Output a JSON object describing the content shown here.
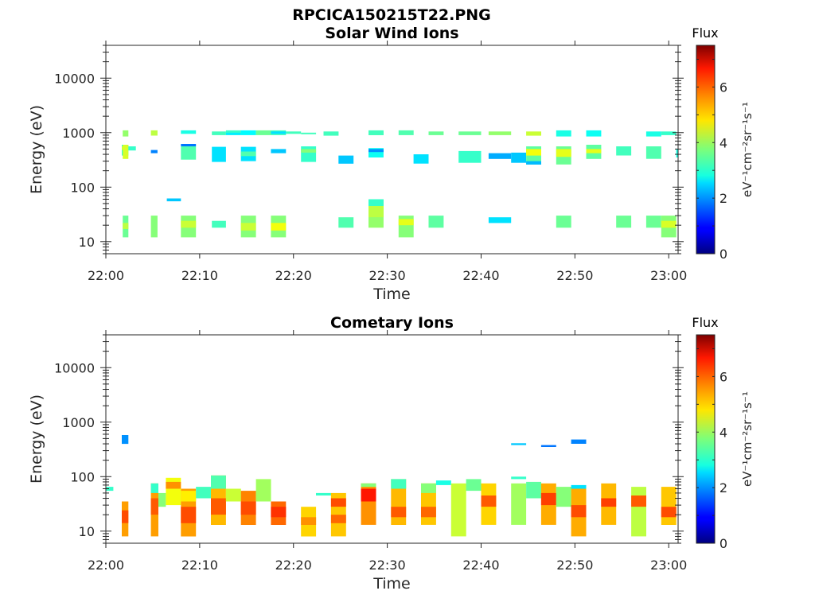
{
  "main_title": "RPCICA150215T22.PNG",
  "colorbar": {
    "label": "Flux",
    "ticks": [
      "0",
      "2",
      "4",
      "6"
    ],
    "range": [
      0,
      7.5
    ],
    "units": "eV⁻¹cm⁻²sr⁻¹s⁻¹",
    "colormap": "jet"
  },
  "chart_data": [
    {
      "type": "heatmap",
      "title": "Solar Wind Ions",
      "xlabel": "Time",
      "ylabel": "Energy (eV)",
      "xlim": [
        "22:00",
        "23:01"
      ],
      "xticks": [
        "22:00",
        "22:10",
        "22:20",
        "22:30",
        "22:40",
        "22:50",
        "23:00"
      ],
      "ylim": [
        6,
        40000
      ],
      "yscale": "log",
      "yticks": [
        "10",
        "100",
        "1000",
        "10000"
      ],
      "cells": [
        [
          1.7,
          2.4,
          380,
          600,
          3.2
        ],
        [
          1.7,
          2.4,
          480,
          560,
          4.3
        ],
        [
          1.8,
          2.4,
          850,
          1100,
          3.9
        ],
        [
          1.8,
          2.4,
          330,
          600,
          4.4
        ],
        [
          2.4,
          3.2,
          470,
          560,
          3.2
        ],
        [
          1.8,
          2.4,
          12,
          30,
          3.6
        ],
        [
          1.8,
          2.4,
          17,
          22,
          4.2
        ],
        [
          4.8,
          5.5,
          880,
          1100,
          4.2
        ],
        [
          4.8,
          5.5,
          420,
          480,
          1.9
        ],
        [
          4.8,
          5.5,
          12,
          30,
          3.8
        ],
        [
          6.5,
          8.0,
          55,
          62,
          2.4
        ],
        [
          8.0,
          9.6,
          950,
          1100,
          3.0
        ],
        [
          8.0,
          9.6,
          560,
          620,
          1.8
        ],
        [
          8.0,
          9.6,
          320,
          560,
          3.4
        ],
        [
          8.0,
          9.6,
          12,
          30,
          3.8
        ],
        [
          8.0,
          9.6,
          18,
          24,
          4.3
        ],
        [
          11.3,
          12.8,
          900,
          1050,
          3.3
        ],
        [
          11.3,
          12.8,
          290,
          550,
          2.6
        ],
        [
          11.3,
          12.8,
          18,
          24,
          3.3
        ],
        [
          12.8,
          14.4,
          950,
          1100,
          3.2
        ],
        [
          12.8,
          14.4,
          900,
          1000,
          2.7
        ],
        [
          14.4,
          16.0,
          900,
          1100,
          2.8
        ],
        [
          14.4,
          16.0,
          300,
          550,
          2.6
        ],
        [
          14.4,
          16.0,
          370,
          450,
          3.4
        ],
        [
          14.4,
          16.0,
          12,
          30,
          3.8
        ],
        [
          14.4,
          16.0,
          16,
          22,
          4.3
        ],
        [
          16.0,
          17.6,
          900,
          1100,
          3.6
        ],
        [
          17.6,
          19.2,
          900,
          1100,
          3.3
        ],
        [
          17.6,
          19.2,
          950,
          1050,
          2.6
        ],
        [
          17.6,
          19.2,
          420,
          500,
          2.4
        ],
        [
          17.6,
          19.2,
          12,
          30,
          3.8
        ],
        [
          17.6,
          19.2,
          16,
          22,
          4.6
        ],
        [
          19.2,
          20.8,
          950,
          1050,
          3.3
        ],
        [
          20.8,
          22.4,
          950,
          1000,
          3.3
        ],
        [
          20.8,
          22.4,
          290,
          560,
          3.2
        ],
        [
          20.8,
          22.4,
          430,
          500,
          3.8
        ],
        [
          23.2,
          24.8,
          880,
          1050,
          3.3
        ],
        [
          24.8,
          26.4,
          270,
          380,
          2.4
        ],
        [
          24.8,
          26.4,
          18,
          28,
          3.4
        ],
        [
          28.0,
          29.6,
          900,
          1050,
          3.6
        ],
        [
          28.0,
          29.6,
          900,
          1100,
          3.3
        ],
        [
          28.0,
          29.6,
          350,
          520,
          2.9
        ],
        [
          28.0,
          29.6,
          440,
          500,
          2.0
        ],
        [
          28.0,
          29.6,
          18,
          60,
          3.9
        ],
        [
          28.0,
          29.6,
          45,
          60,
          3.2
        ],
        [
          28.0,
          29.6,
          28,
          45,
          4.2
        ],
        [
          31.2,
          32.8,
          900,
          1100,
          3.4
        ],
        [
          31.2,
          32.8,
          12,
          30,
          3.8
        ],
        [
          31.2,
          32.8,
          20,
          26,
          4.5
        ],
        [
          32.8,
          34.4,
          270,
          400,
          2.6
        ],
        [
          34.4,
          36.0,
          900,
          1050,
          3.6
        ],
        [
          34.4,
          36.0,
          18,
          30,
          3.5
        ],
        [
          37.6,
          40.0,
          900,
          1050,
          3.6
        ],
        [
          37.6,
          40.0,
          280,
          460,
          3.2
        ],
        [
          40.8,
          43.2,
          900,
          1050,
          3.9
        ],
        [
          40.8,
          43.2,
          330,
          420,
          2.2
        ],
        [
          40.8,
          43.2,
          22,
          28,
          2.6
        ],
        [
          43.2,
          44.8,
          280,
          430,
          2.4
        ],
        [
          44.8,
          46.4,
          880,
          1050,
          4.3
        ],
        [
          44.8,
          46.4,
          260,
          560,
          3.5
        ],
        [
          44.8,
          46.4,
          380,
          500,
          4.6
        ],
        [
          44.8,
          46.4,
          260,
          300,
          2.3
        ],
        [
          48.0,
          49.6,
          850,
          1100,
          3.0
        ],
        [
          48.0,
          49.6,
          260,
          560,
          3.6
        ],
        [
          48.0,
          49.6,
          360,
          500,
          4.5
        ],
        [
          48.0,
          49.6,
          18,
          30,
          3.6
        ],
        [
          51.2,
          52.8,
          850,
          1100,
          2.9
        ],
        [
          51.2,
          52.8,
          330,
          600,
          3.5
        ],
        [
          51.2,
          52.8,
          420,
          500,
          4.5
        ],
        [
          54.4,
          56.0,
          380,
          560,
          3.3
        ],
        [
          54.4,
          56.0,
          18,
          30,
          3.6
        ],
        [
          57.6,
          59.2,
          850,
          1050,
          3.0
        ],
        [
          57.6,
          59.2,
          330,
          560,
          3.4
        ],
        [
          57.6,
          59.2,
          18,
          30,
          3.6
        ],
        [
          59.2,
          60.8,
          900,
          1050,
          3.2
        ],
        [
          59.2,
          60.8,
          12,
          30,
          3.8
        ],
        [
          59.2,
          60.8,
          18,
          24,
          4.4
        ],
        [
          60.8,
          61.0,
          350,
          500,
          3.0
        ]
      ]
    },
    {
      "type": "heatmap",
      "title": "Cometary Ions",
      "xlabel": "Time",
      "ylabel": "Energy (eV)",
      "xlim": [
        "22:00",
        "23:01"
      ],
      "xticks": [
        "22:00",
        "22:10",
        "22:20",
        "22:30",
        "22:40",
        "22:50",
        "23:00"
      ],
      "ylim": [
        6,
        40000
      ],
      "yscale": "log",
      "yticks": [
        "10",
        "100",
        "1000",
        "10000"
      ],
      "cells": [
        [
          0.0,
          0.8,
          55,
          65,
          3.2
        ],
        [
          1.7,
          2.4,
          400,
          580,
          2.0
        ],
        [
          1.7,
          2.4,
          8,
          35,
          5.4
        ],
        [
          1.7,
          2.4,
          14,
          24,
          6.0
        ],
        [
          4.8,
          5.6,
          8,
          75,
          5.4
        ],
        [
          4.8,
          5.6,
          20,
          40,
          5.9
        ],
        [
          4.8,
          5.6,
          50,
          75,
          3.2
        ],
        [
          5.6,
          6.4,
          28,
          50,
          3.8
        ],
        [
          6.4,
          8.0,
          30,
          95,
          4.6
        ],
        [
          6.4,
          8.0,
          60,
          80,
          5.5
        ],
        [
          8.0,
          9.6,
          8,
          60,
          5.4
        ],
        [
          8.0,
          9.6,
          14,
          28,
          6.0
        ],
        [
          8.0,
          9.6,
          35,
          55,
          4.8
        ],
        [
          9.6,
          11.2,
          40,
          65,
          3.3
        ],
        [
          11.2,
          12.8,
          13,
          105,
          5.2
        ],
        [
          11.2,
          12.8,
          20,
          40,
          5.9
        ],
        [
          11.2,
          12.8,
          60,
          105,
          3.4
        ],
        [
          12.8,
          14.4,
          35,
          60,
          4.3
        ],
        [
          14.4,
          16.0,
          13,
          55,
          5.6
        ],
        [
          14.4,
          16.0,
          20,
          35,
          6.0
        ],
        [
          16.0,
          17.6,
          35,
          90,
          4.0
        ],
        [
          17.6,
          19.2,
          13,
          35,
          5.8
        ],
        [
          17.6,
          19.2,
          18,
          28,
          6.2
        ],
        [
          20.8,
          22.4,
          8,
          28,
          5.0
        ],
        [
          20.8,
          22.4,
          13,
          18,
          5.5
        ],
        [
          22.4,
          24.0,
          45,
          50,
          3.2
        ],
        [
          24.0,
          25.6,
          8,
          50,
          5.1
        ],
        [
          24.0,
          25.6,
          28,
          40,
          6.0
        ],
        [
          24.0,
          25.6,
          14,
          20,
          5.8
        ],
        [
          27.2,
          28.8,
          13,
          75,
          5.5
        ],
        [
          27.2,
          28.8,
          35,
          60,
          6.4
        ],
        [
          27.2,
          28.8,
          65,
          75,
          3.8
        ],
        [
          30.4,
          32.0,
          13,
          90,
          5.2
        ],
        [
          30.4,
          32.0,
          18,
          28,
          5.9
        ],
        [
          30.4,
          32.0,
          60,
          90,
          3.3
        ],
        [
          33.6,
          35.2,
          13,
          75,
          5.1
        ],
        [
          33.6,
          35.2,
          18,
          28,
          5.8
        ],
        [
          33.6,
          35.2,
          50,
          75,
          3.8
        ],
        [
          35.2,
          36.8,
          70,
          85,
          3.0
        ],
        [
          36.8,
          38.4,
          8,
          75,
          4.3
        ],
        [
          38.4,
          40.0,
          55,
          90,
          3.6
        ],
        [
          40.0,
          41.6,
          13,
          75,
          5.0
        ],
        [
          40.0,
          41.6,
          28,
          45,
          5.9
        ],
        [
          43.2,
          44.8,
          380,
          410,
          2.4
        ],
        [
          43.2,
          44.8,
          90,
          100,
          3.2
        ],
        [
          43.2,
          44.8,
          13,
          75,
          4.0
        ],
        [
          44.8,
          46.4,
          40,
          80,
          3.5
        ],
        [
          46.4,
          48.0,
          13,
          75,
          5.3
        ],
        [
          46.4,
          48.0,
          30,
          50,
          6.1
        ],
        [
          46.4,
          48.0,
          350,
          380,
          1.8
        ],
        [
          48.0,
          49.6,
          28,
          65,
          3.8
        ],
        [
          49.6,
          51.2,
          8,
          65,
          5.3
        ],
        [
          49.6,
          51.2,
          18,
          30,
          6.0
        ],
        [
          49.6,
          51.2,
          400,
          480,
          1.9
        ],
        [
          49.6,
          51.2,
          60,
          70,
          2.6
        ],
        [
          52.8,
          54.4,
          13,
          75,
          5.2
        ],
        [
          52.8,
          54.4,
          28,
          40,
          6.1
        ],
        [
          56.0,
          57.6,
          8,
          65,
          4.2
        ],
        [
          56.0,
          57.6,
          28,
          45,
          5.9
        ],
        [
          59.2,
          60.8,
          13,
          65,
          5.1
        ],
        [
          59.2,
          60.8,
          18,
          28,
          6.0
        ]
      ]
    }
  ]
}
